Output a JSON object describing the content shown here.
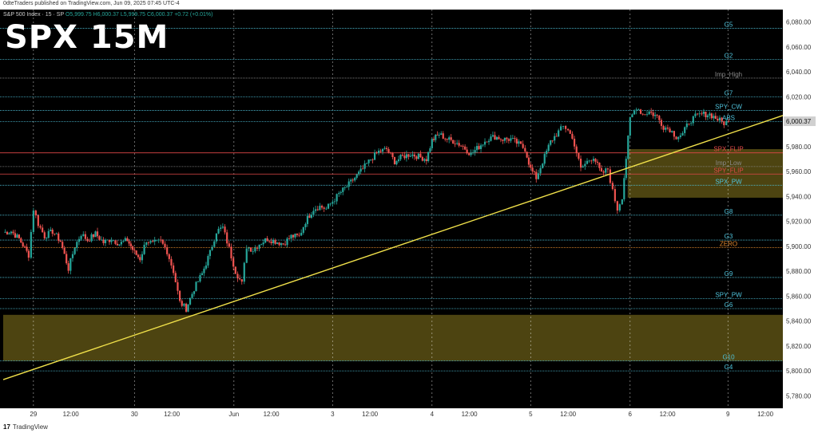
{
  "header": {
    "published_by": "0dteTraders published on TradingView.com, Jun 09, 2025 07:45 UTC-4",
    "symbol_line_prefix": "S&P 500 Index · 15 · SP",
    "ohlc": "O5,999.75 H6,000.37 L5,999.75 C6,000.37 +0.72 (+0.01%)"
  },
  "overlay_title": "SPX 15M",
  "footer": {
    "brand": "TradingView"
  },
  "colors": {
    "background": "#000000",
    "up": "#26a69a",
    "down": "#ef5350",
    "level_cyan": "#4fc3dc",
    "level_red": "#e04848",
    "level_orange": "#e0862c",
    "level_gray": "#8a8a8a",
    "trendline": "#f0e04a",
    "zone": "#5a5014"
  },
  "chart_data": {
    "type": "candlestick",
    "title": "SPX 15M",
    "ylim": [
      5770,
      6090
    ],
    "y_ticks": [
      5780,
      5800,
      5820,
      5840,
      5860,
      5880,
      5900,
      5920,
      5940,
      5960,
      5980,
      6000,
      6020,
      6040,
      6060,
      6080
    ],
    "y_tick_labels": [
      "5,780.00",
      "5,800.00",
      "5,820.00",
      "5,840.00",
      "5,860.00",
      "5,880.00",
      "5,900.00",
      "5,920.00",
      "5,940.00",
      "5,960.00",
      "5,980.00",
      "6,000.00",
      "6,020.00",
      "6,040.00",
      "6,060.00",
      "6,080.00"
    ],
    "x_range": [
      0,
      980
    ],
    "x_ticks": [
      {
        "pos": 38,
        "label": "29"
      },
      {
        "pos": 85,
        "label": "12:00"
      },
      {
        "pos": 165,
        "label": "30"
      },
      {
        "pos": 212,
        "label": "12:00"
      },
      {
        "pos": 290,
        "label": "Jun"
      },
      {
        "pos": 337,
        "label": "12:00"
      },
      {
        "pos": 414,
        "label": "3"
      },
      {
        "pos": 461,
        "label": "12:00"
      },
      {
        "pos": 539,
        "label": "4"
      },
      {
        "pos": 586,
        "label": "12:00"
      },
      {
        "pos": 663,
        "label": "5"
      },
      {
        "pos": 710,
        "label": "12:00"
      },
      {
        "pos": 788,
        "label": "6"
      },
      {
        "pos": 835,
        "label": "12:00"
      },
      {
        "pos": 911,
        "label": "9"
      },
      {
        "pos": 958,
        "label": "12:00"
      }
    ],
    "session_separators": [
      38,
      165,
      290,
      414,
      539,
      663,
      788,
      911
    ],
    "last_price": 6000.37,
    "last_price_label": "6,000.37",
    "levels": [
      {
        "name": "G5",
        "price": 6075,
        "style": "cyan"
      },
      {
        "name": "G2",
        "price": 6050,
        "style": "cyan"
      },
      {
        "name": "Imp_High",
        "price": 6035,
        "style": "gray"
      },
      {
        "name": "G7",
        "price": 6020,
        "style": "cyan"
      },
      {
        "name": "SPY_CW",
        "price": 6009,
        "style": "cyan"
      },
      {
        "name": "ABS",
        "price": 6000,
        "style": "cyan"
      },
      {
        "name": "SPX_FLIP",
        "price": 5975,
        "style": "red"
      },
      {
        "name": "Imp_Low",
        "price": 5964,
        "style": "gray"
      },
      {
        "name": "SPY_FLIP",
        "price": 5958,
        "style": "red"
      },
      {
        "name": "SPX_PW",
        "price": 5949,
        "style": "cyan"
      },
      {
        "name": "G8",
        "price": 5925,
        "style": "cyan"
      },
      {
        "name": "G3",
        "price": 5905,
        "style": "cyan"
      },
      {
        "name": "ZERO",
        "price": 5899,
        "style": "orange"
      },
      {
        "name": "G9",
        "price": 5875,
        "style": "cyan"
      },
      {
        "name": "SPY_PW",
        "price": 5858,
        "style": "cyan"
      },
      {
        "name": "G6",
        "price": 5850,
        "style": "cyan"
      },
      {
        "name": "G10",
        "price": 5808,
        "style": "cyan"
      },
      {
        "name": "G4",
        "price": 5800,
        "style": "cyan"
      }
    ],
    "zones": [
      {
        "x0": 0,
        "x1": 980,
        "y0": 5808,
        "y1": 5845
      },
      {
        "x0": 785,
        "x1": 980,
        "y0": 5939,
        "y1": 5978
      }
    ],
    "trendline": {
      "x0": 0,
      "y0": 5793,
      "x1": 980,
      "y1": 6005
    },
    "candle_keys": [
      [
        0,
        5911
      ],
      [
        10,
        5912
      ],
      [
        20,
        5906
      ],
      [
        32,
        5893
      ],
      [
        38,
        5930
      ],
      [
        44,
        5918
      ],
      [
        52,
        5908
      ],
      [
        62,
        5912
      ],
      [
        72,
        5904
      ],
      [
        82,
        5882
      ],
      [
        90,
        5900
      ],
      [
        98,
        5910
      ],
      [
        106,
        5905
      ],
      [
        116,
        5910
      ],
      [
        126,
        5903
      ],
      [
        136,
        5906
      ],
      [
        146,
        5902
      ],
      [
        156,
        5905
      ],
      [
        165,
        5895
      ],
      [
        172,
        5890
      ],
      [
        180,
        5905
      ],
      [
        188,
        5902
      ],
      [
        198,
        5904
      ],
      [
        206,
        5896
      ],
      [
        214,
        5880
      ],
      [
        222,
        5855
      ],
      [
        230,
        5850
      ],
      [
        240,
        5866
      ],
      [
        250,
        5878
      ],
      [
        260,
        5895
      ],
      [
        268,
        5912
      ],
      [
        276,
        5915
      ],
      [
        284,
        5898
      ],
      [
        292,
        5880
      ],
      [
        300,
        5870
      ],
      [
        306,
        5900
      ],
      [
        314,
        5897
      ],
      [
        322,
        5902
      ],
      [
        332,
        5906
      ],
      [
        342,
        5904
      ],
      [
        352,
        5902
      ],
      [
        362,
        5908
      ],
      [
        372,
        5908
      ],
      [
        380,
        5920
      ],
      [
        390,
        5930
      ],
      [
        398,
        5932
      ],
      [
        406,
        5930
      ],
      [
        414,
        5936
      ],
      [
        422,
        5942
      ],
      [
        432,
        5948
      ],
      [
        442,
        5955
      ],
      [
        452,
        5962
      ],
      [
        462,
        5970
      ],
      [
        472,
        5976
      ],
      [
        482,
        5978
      ],
      [
        492,
        5968
      ],
      [
        502,
        5972
      ],
      [
        512,
        5974
      ],
      [
        522,
        5972
      ],
      [
        532,
        5970
      ],
      [
        539,
        5985
      ],
      [
        548,
        5990
      ],
      [
        558,
        5986
      ],
      [
        568,
        5984
      ],
      [
        578,
        5980
      ],
      [
        588,
        5974
      ],
      [
        598,
        5980
      ],
      [
        608,
        5986
      ],
      [
        618,
        5988
      ],
      [
        628,
        5986
      ],
      [
        638,
        5986
      ],
      [
        648,
        5982
      ],
      [
        656,
        5978
      ],
      [
        663,
        5962
      ],
      [
        670,
        5955
      ],
      [
        678,
        5968
      ],
      [
        688,
        5984
      ],
      [
        698,
        5992
      ],
      [
        704,
        5996
      ],
      [
        710,
        5994
      ],
      [
        718,
        5982
      ],
      [
        726,
        5962
      ],
      [
        734,
        5968
      ],
      [
        742,
        5972
      ],
      [
        752,
        5958
      ],
      [
        760,
        5962
      ],
      [
        766,
        5944
      ],
      [
        772,
        5930
      ],
      [
        778,
        5940
      ],
      [
        788,
        6002
      ],
      [
        796,
        6012
      ],
      [
        804,
        6006
      ],
      [
        812,
        6008
      ],
      [
        822,
        6004
      ],
      [
        830,
        5996
      ],
      [
        838,
        5994
      ],
      [
        846,
        5988
      ],
      [
        854,
        5990
      ],
      [
        862,
        6000
      ],
      [
        870,
        6004
      ],
      [
        878,
        6006
      ],
      [
        888,
        6006
      ],
      [
        898,
        6002
      ],
      [
        906,
        5999
      ],
      [
        912,
        6000
      ]
    ]
  }
}
